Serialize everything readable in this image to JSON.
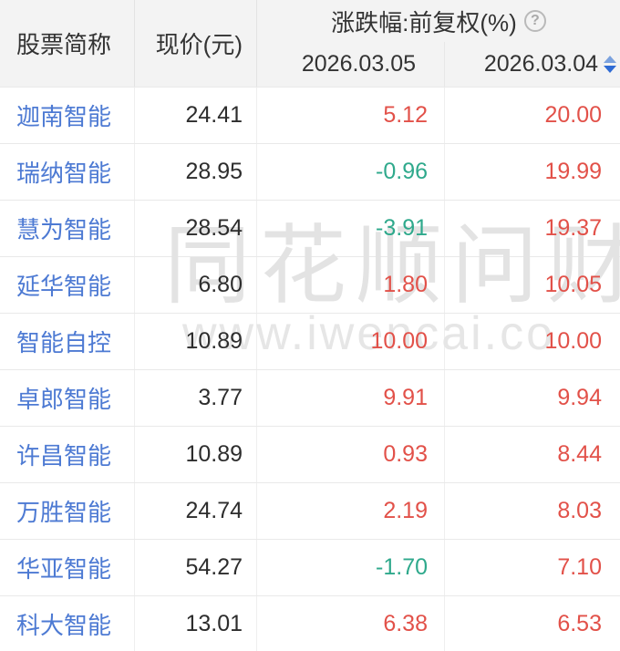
{
  "header": {
    "stock_col": "股票简称",
    "price_col": "现价(元)",
    "change_group": "涨跌幅:前复权(%)",
    "help_glyph": "?",
    "date_col_1": "2026.03.05",
    "date_col_2": "2026.03.04"
  },
  "watermark": {
    "line1": "同花顺问财",
    "line2": "www.iwencai.co"
  },
  "colors": {
    "up_red": "#e25149",
    "down_green": "#2fa98c",
    "stock_link_blue": "#4d7ad3",
    "header_bg": "#f3f3f3",
    "sort_icon_blue": "#2f6bd4"
  },
  "rows": [
    {
      "name": "迦南智能",
      "price": "24.41",
      "chg_0305": "5.12",
      "chg_0304": "20.00"
    },
    {
      "name": "瑞纳智能",
      "price": "28.95",
      "chg_0305": "-0.96",
      "chg_0304": "19.99"
    },
    {
      "name": "慧为智能",
      "price": "28.54",
      "chg_0305": "-3.91",
      "chg_0304": "19.37"
    },
    {
      "name": "延华智能",
      "price": "6.80",
      "chg_0305": "1.80",
      "chg_0304": "10.05"
    },
    {
      "name": "智能自控",
      "price": "10.89",
      "chg_0305": "10.00",
      "chg_0304": "10.00"
    },
    {
      "name": "卓郎智能",
      "price": "3.77",
      "chg_0305": "9.91",
      "chg_0304": "9.94"
    },
    {
      "name": "许昌智能",
      "price": "10.89",
      "chg_0305": "0.93",
      "chg_0304": "8.44"
    },
    {
      "name": "万胜智能",
      "price": "24.74",
      "chg_0305": "2.19",
      "chg_0304": "8.03"
    },
    {
      "name": "华亚智能",
      "price": "54.27",
      "chg_0305": "-1.70",
      "chg_0304": "7.10"
    },
    {
      "name": "科大智能",
      "price": "13.01",
      "chg_0305": "6.38",
      "chg_0304": "6.53"
    }
  ]
}
